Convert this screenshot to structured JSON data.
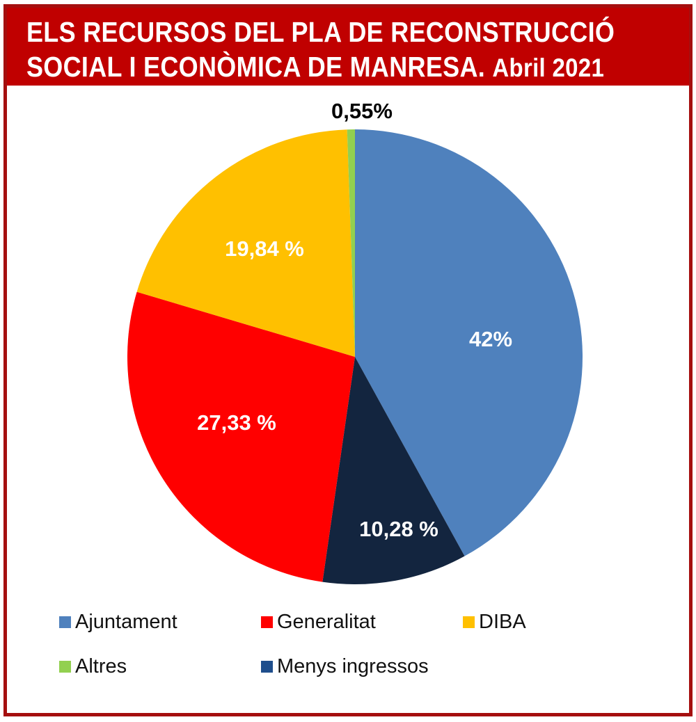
{
  "title": {
    "line1": "ELS RECURSOS DEL PLA DE RECONSTRUCCIÓ",
    "line2": "SOCIAL I ECONÒMICA DE MANRESA.",
    "date": "Abril 2021"
  },
  "chart_data": {
    "type": "pie",
    "title": "ELS RECURSOS DEL PLA DE RECONSTRUCCIÓ SOCIAL I ECONÒMICA DE MANRESA. Abril 2021",
    "start": "top",
    "direction": "clockwise",
    "legend_position": "bottom",
    "slices": [
      {
        "name": "Ajuntament",
        "value": 42,
        "label": "42%",
        "color": "#4f81bd",
        "label_color": "#ffffff"
      },
      {
        "name": "Menys ingressos",
        "value": 10.28,
        "label": "10,28 %",
        "color": "#13253f",
        "legend_color": "#1f4e8c",
        "label_color": "#ffffff"
      },
      {
        "name": "Generalitat",
        "value": 27.33,
        "label": "27,33 %",
        "color": "#ff0000",
        "label_color": "#ffffff"
      },
      {
        "name": "DIBA",
        "value": 19.84,
        "label": "19,84 %",
        "color": "#ffc000",
        "label_color": "#ffffff"
      },
      {
        "name": "Altres",
        "value": 0.55,
        "label": "0,55%",
        "color": "#92d050",
        "label_color": "#000000"
      }
    ],
    "legend": [
      "Ajuntament",
      "Generalitat",
      "DIBA",
      "Altres",
      "Menys ingressos"
    ]
  }
}
